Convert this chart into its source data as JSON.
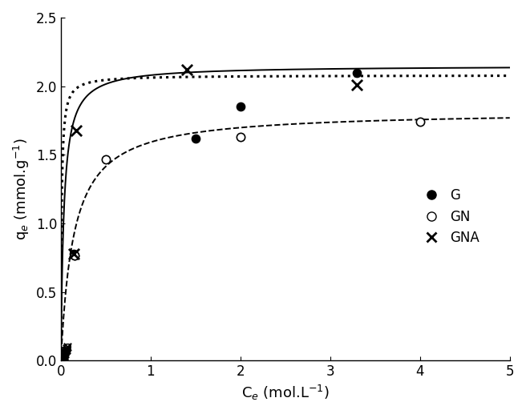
{
  "title": "",
  "xlabel": "C$_{e}$ (mol.L$^{-1}$)",
  "ylabel": "q$_{e}$ (mmol.g$^{-1}$)",
  "xlim": [
    0,
    5
  ],
  "ylim": [
    0,
    2.5
  ],
  "xticks": [
    0,
    1,
    2,
    3,
    4,
    5
  ],
  "yticks": [
    0.0,
    0.5,
    1.0,
    1.5,
    2.0,
    2.5
  ],
  "G_points_x": [
    0.14,
    0.15,
    1.5,
    2.0,
    3.3
  ],
  "G_points_y": [
    0.78,
    0.77,
    1.62,
    1.85,
    2.1
  ],
  "G_low_x": [
    0.01,
    0.015,
    0.02,
    0.025,
    0.03,
    0.035,
    0.04,
    0.045,
    0.05,
    0.055,
    0.06,
    0.065,
    0.07
  ],
  "G_low_y": [
    0.0,
    0.0,
    0.01,
    0.01,
    0.02,
    0.03,
    0.04,
    0.05,
    0.06,
    0.07,
    0.08,
    0.09,
    0.1
  ],
  "GN_points_x": [
    0.15,
    0.5,
    2.0,
    4.0
  ],
  "GN_points_y": [
    0.77,
    1.47,
    1.63,
    1.74
  ],
  "GN_low_x": [
    0.01,
    0.015,
    0.02,
    0.025,
    0.03,
    0.035,
    0.04,
    0.045,
    0.05,
    0.055,
    0.06,
    0.065,
    0.07
  ],
  "GN_low_y": [
    0.0,
    0.0,
    0.01,
    0.01,
    0.02,
    0.03,
    0.04,
    0.05,
    0.06,
    0.07,
    0.08,
    0.09,
    0.1
  ],
  "GNA_points_x": [
    0.14,
    0.17,
    1.4,
    3.3
  ],
  "GNA_points_y": [
    0.78,
    1.68,
    2.12,
    2.01
  ],
  "GNA_low_x": [
    0.01,
    0.015,
    0.02,
    0.025,
    0.03,
    0.035,
    0.04,
    0.045,
    0.05,
    0.055,
    0.06,
    0.065,
    0.07
  ],
  "GNA_low_y": [
    0.0,
    0.0,
    0.01,
    0.01,
    0.02,
    0.03,
    0.04,
    0.05,
    0.06,
    0.07,
    0.08,
    0.09,
    0.1
  ],
  "G_fit": {
    "qm": 2.15,
    "K": 30.0
  },
  "GN_fit": {
    "qm": 1.82,
    "K": 7.0
  },
  "GNA_fit": {
    "qm": 2.08,
    "K": 120.0
  },
  "background_color": "white"
}
